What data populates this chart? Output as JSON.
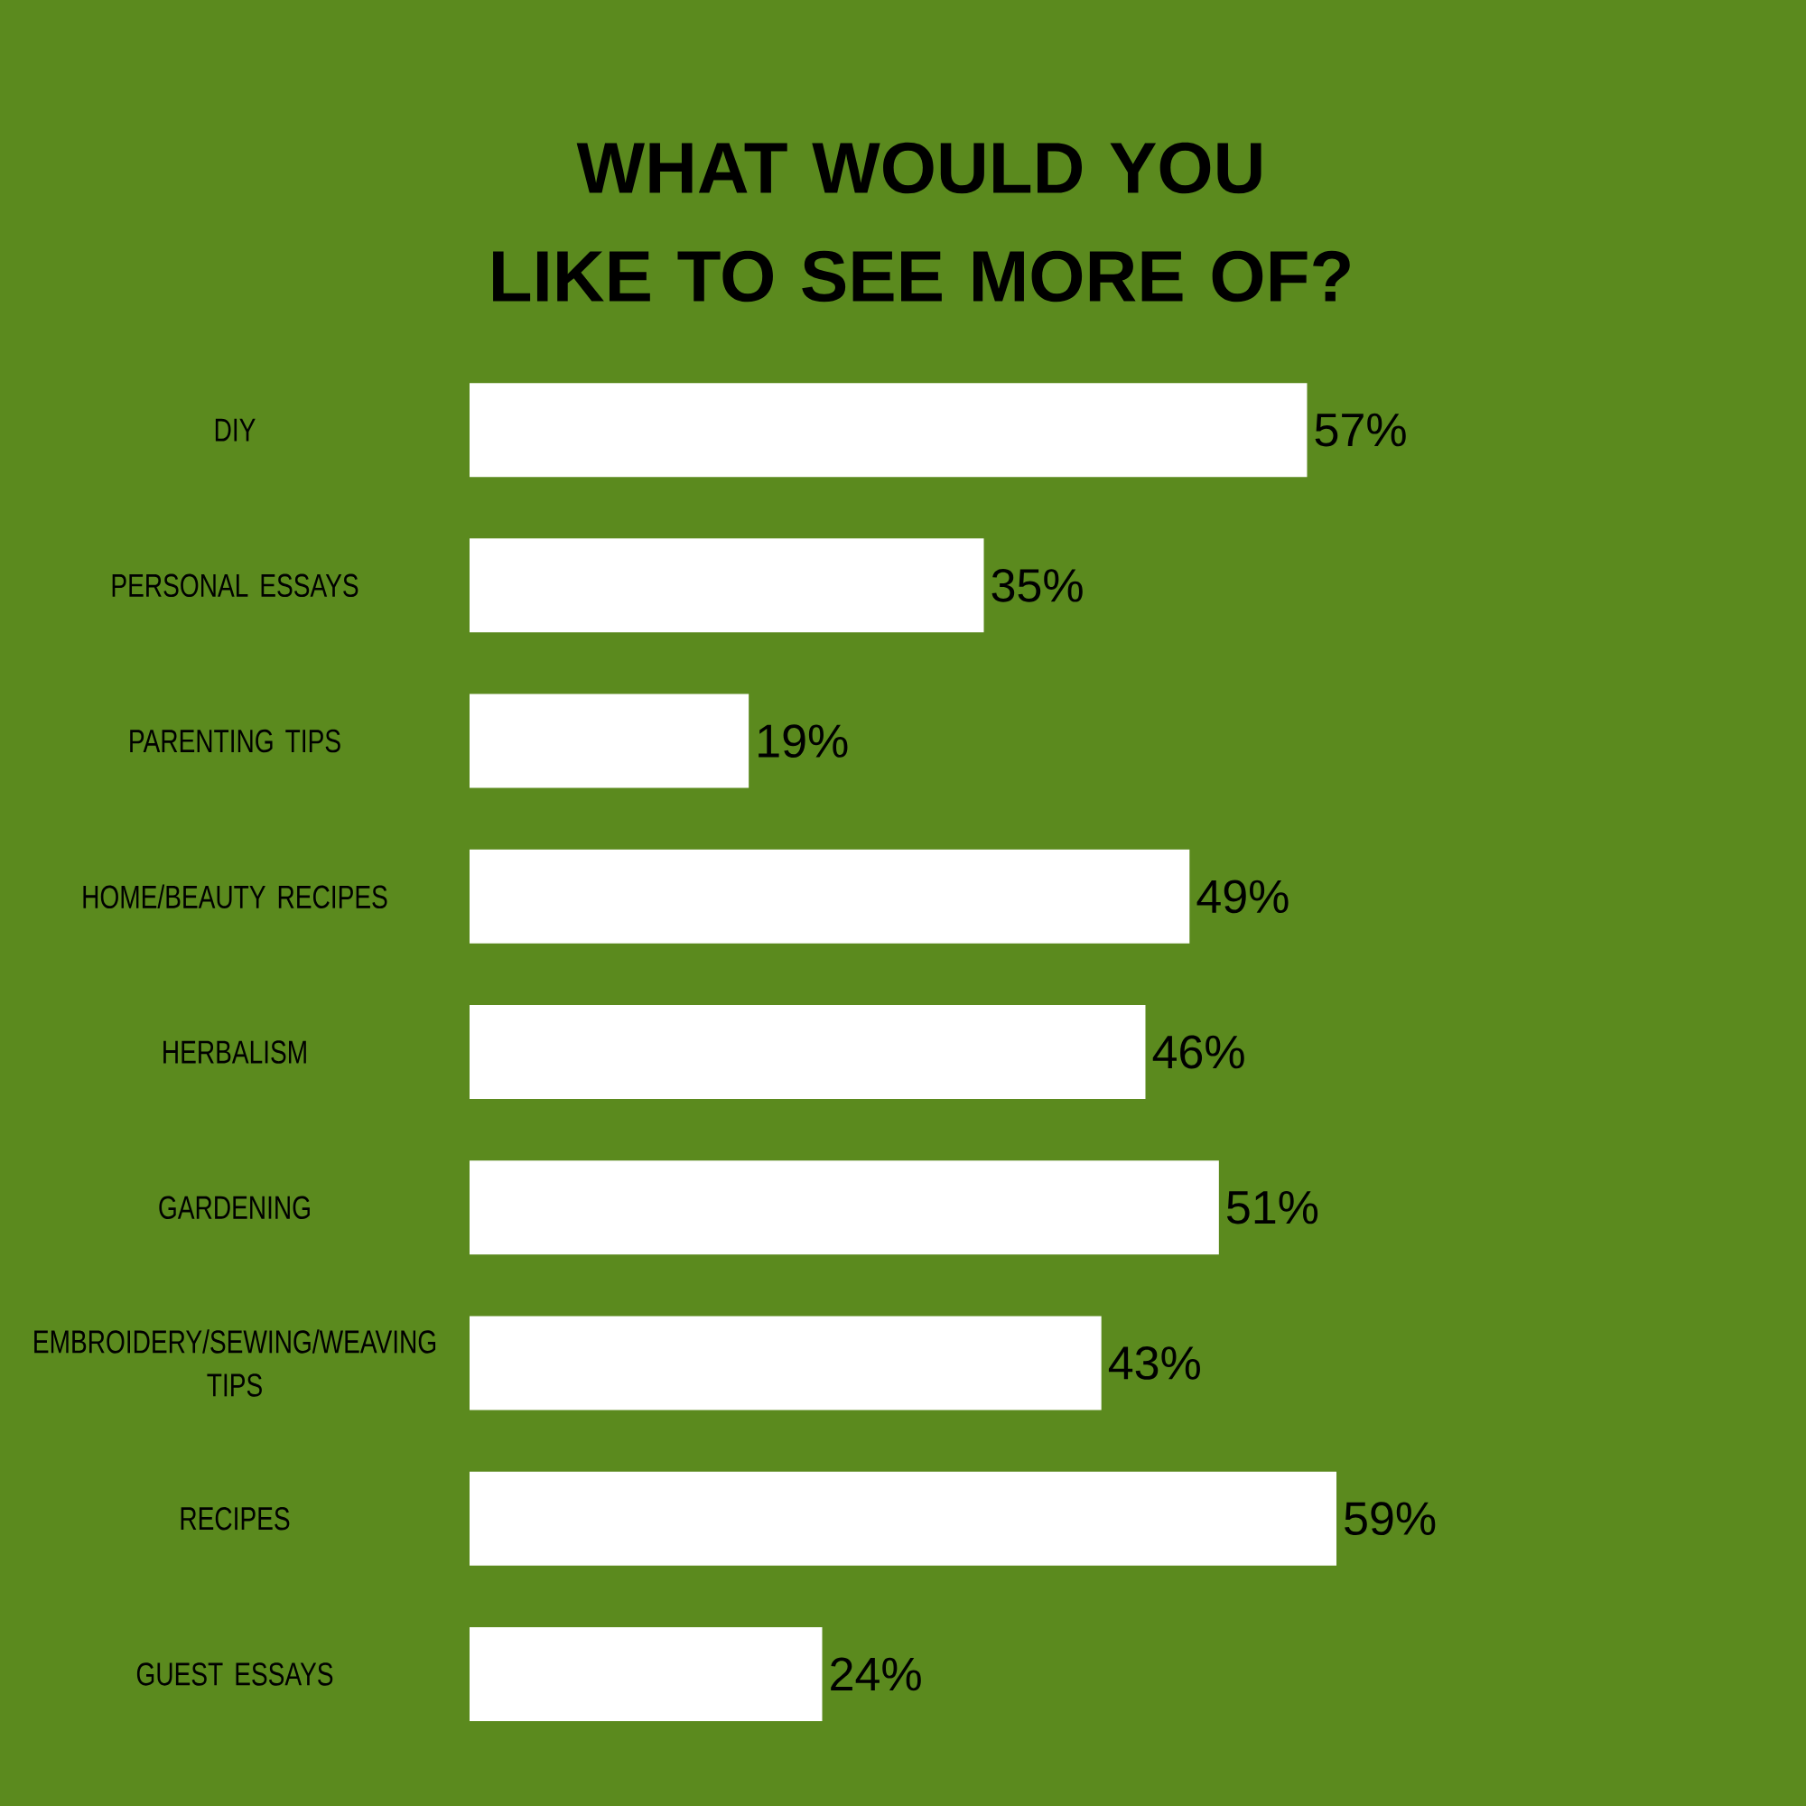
{
  "chart_data": {
    "type": "bar",
    "orientation": "horizontal",
    "title": "WHAT WOULD YOU LIKE TO SEE MORE OF?",
    "categories": [
      "DIY",
      "PERSONAL ESSAYS",
      "PARENTING TIPS",
      "HOME/BEAUTY RECIPES",
      "HERBALISM",
      "GARDENING",
      "EMBROIDERY/SEWING/WEAVING TIPS",
      "RECIPES",
      "GUEST ESSAYS"
    ],
    "values": [
      57,
      35,
      19,
      49,
      46,
      51,
      43,
      59,
      24
    ],
    "value_labels": [
      "57%",
      "35%",
      "19%",
      "49%",
      "46%",
      "51%",
      "43%",
      "59%",
      "24%"
    ],
    "color": "#ffffff"
  }
}
